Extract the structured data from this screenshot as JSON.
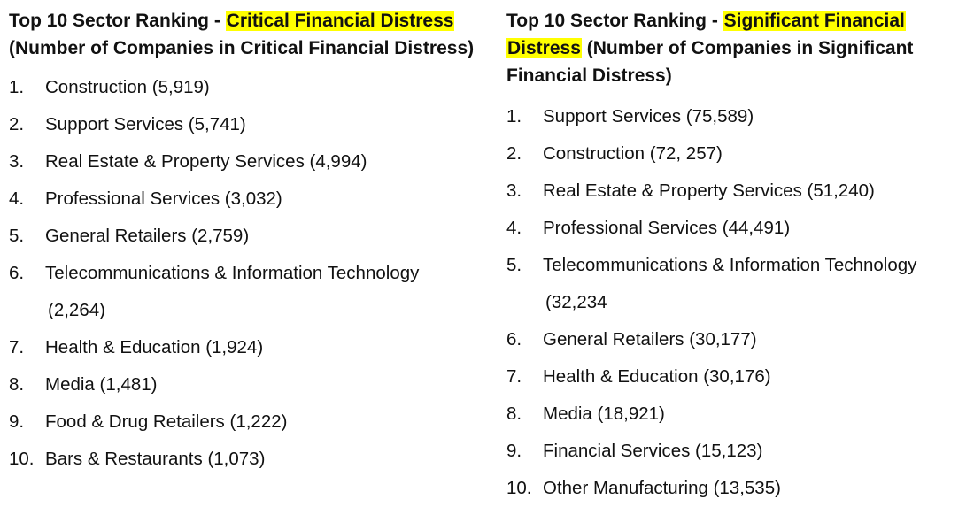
{
  "left": {
    "heading": {
      "prefix": "Top 10 Sector Ranking - ",
      "highlight": "Critical Financial Distress",
      "suffix": "(Number of Companies in Critical Financial Distress)"
    },
    "items": [
      {
        "num": "1.",
        "text": "Construction (5,919)"
      },
      {
        "num": "2.",
        "text": "Support Services (5,741)"
      },
      {
        "num": "3.",
        "text": "Real Estate & Property Services (4,994)"
      },
      {
        "num": "4.",
        "text": "Professional Services (3,032)"
      },
      {
        "num": "5.",
        "text": "General Retailers (2,759)"
      },
      {
        "num": "6.",
        "text": "Telecommunications & Information Technology",
        "cont": "(2,264)"
      },
      {
        "num": "7.",
        "text": "Health & Education (1,924)"
      },
      {
        "num": "8.",
        "text": "Media (1,481)"
      },
      {
        "num": "9.",
        "text": "Food & Drug Retailers (1,222)"
      },
      {
        "num": "10.",
        "text": "Bars & Restaurants (1,073)"
      }
    ]
  },
  "right": {
    "heading": {
      "prefix": "Top 10 Sector Ranking - ",
      "highlight_line1": "Significant Financial",
      "highlight_line2": "Distress",
      "suffix": "(Number of Companies in Significant Financial Distress)"
    },
    "items": [
      {
        "num": "1.",
        "text": "Support Services (75,589)"
      },
      {
        "num": "2.",
        "text": "Construction (72, 257)"
      },
      {
        "num": "3.",
        "text": "Real Estate & Property Services (51,240)"
      },
      {
        "num": "4.",
        "text": "Professional Services (44,491)"
      },
      {
        "num": "5.",
        "text": "Telecommunications & Information Technology",
        "cont": "(32,234"
      },
      {
        "num": "6.",
        "text": "General Retailers (30,177)"
      },
      {
        "num": "7.",
        "text": "Health & Education (30,176)"
      },
      {
        "num": "8.",
        "text": "Media (18,921)"
      },
      {
        "num": "9.",
        "text": "Financial Services (15,123)"
      },
      {
        "num": "10.",
        "text": "Other Manufacturing (13,535)"
      }
    ]
  },
  "colors": {
    "highlight": "#ffff00",
    "text": "#111111"
  }
}
